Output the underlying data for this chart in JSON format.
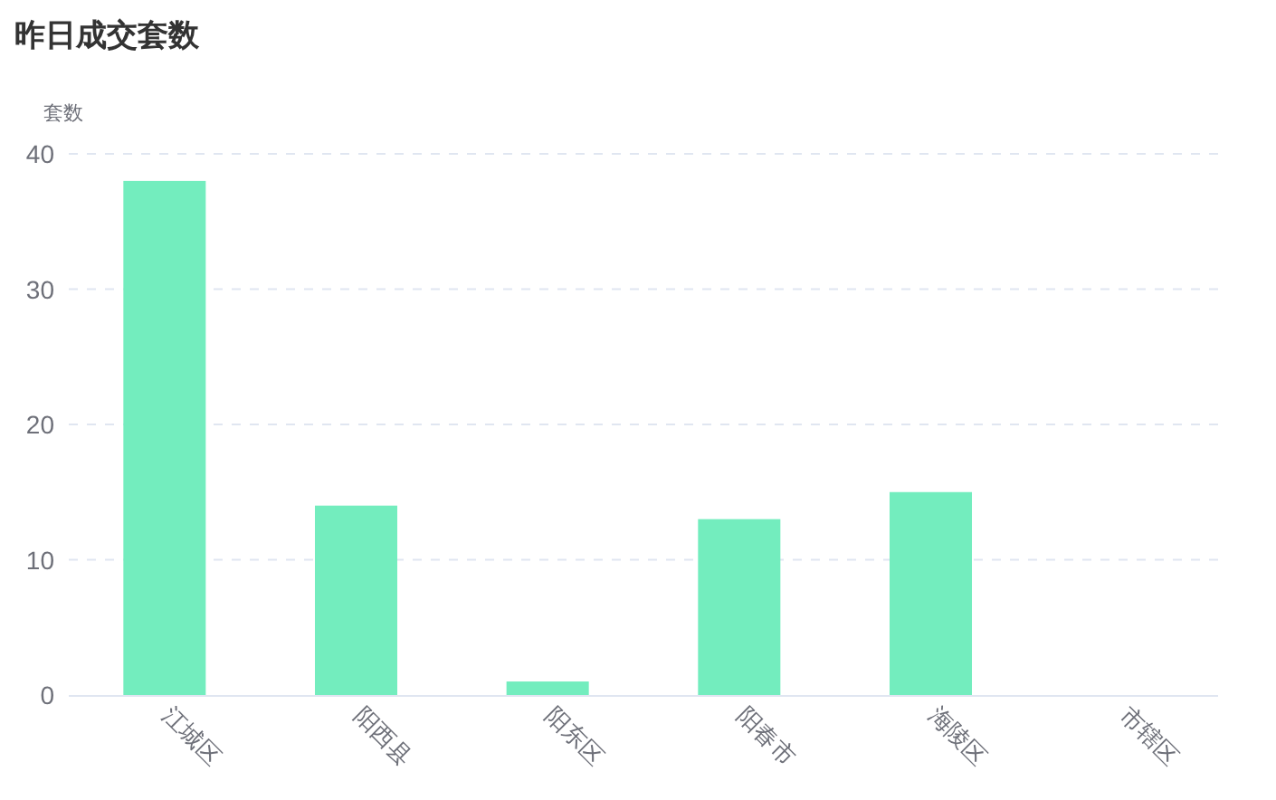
{
  "chart_data": {
    "type": "bar",
    "title": "昨日成交套数",
    "ylabel": "套数",
    "categories": [
      "江城区",
      "阳西县",
      "阳东区",
      "阳春市",
      "海陵区",
      "市辖区"
    ],
    "values": [
      38,
      14,
      1,
      13,
      15,
      0
    ],
    "color": "#73edbe",
    "ylim": [
      0,
      40
    ],
    "yticks": [
      0,
      10,
      20,
      30,
      40
    ],
    "grid": "y"
  }
}
